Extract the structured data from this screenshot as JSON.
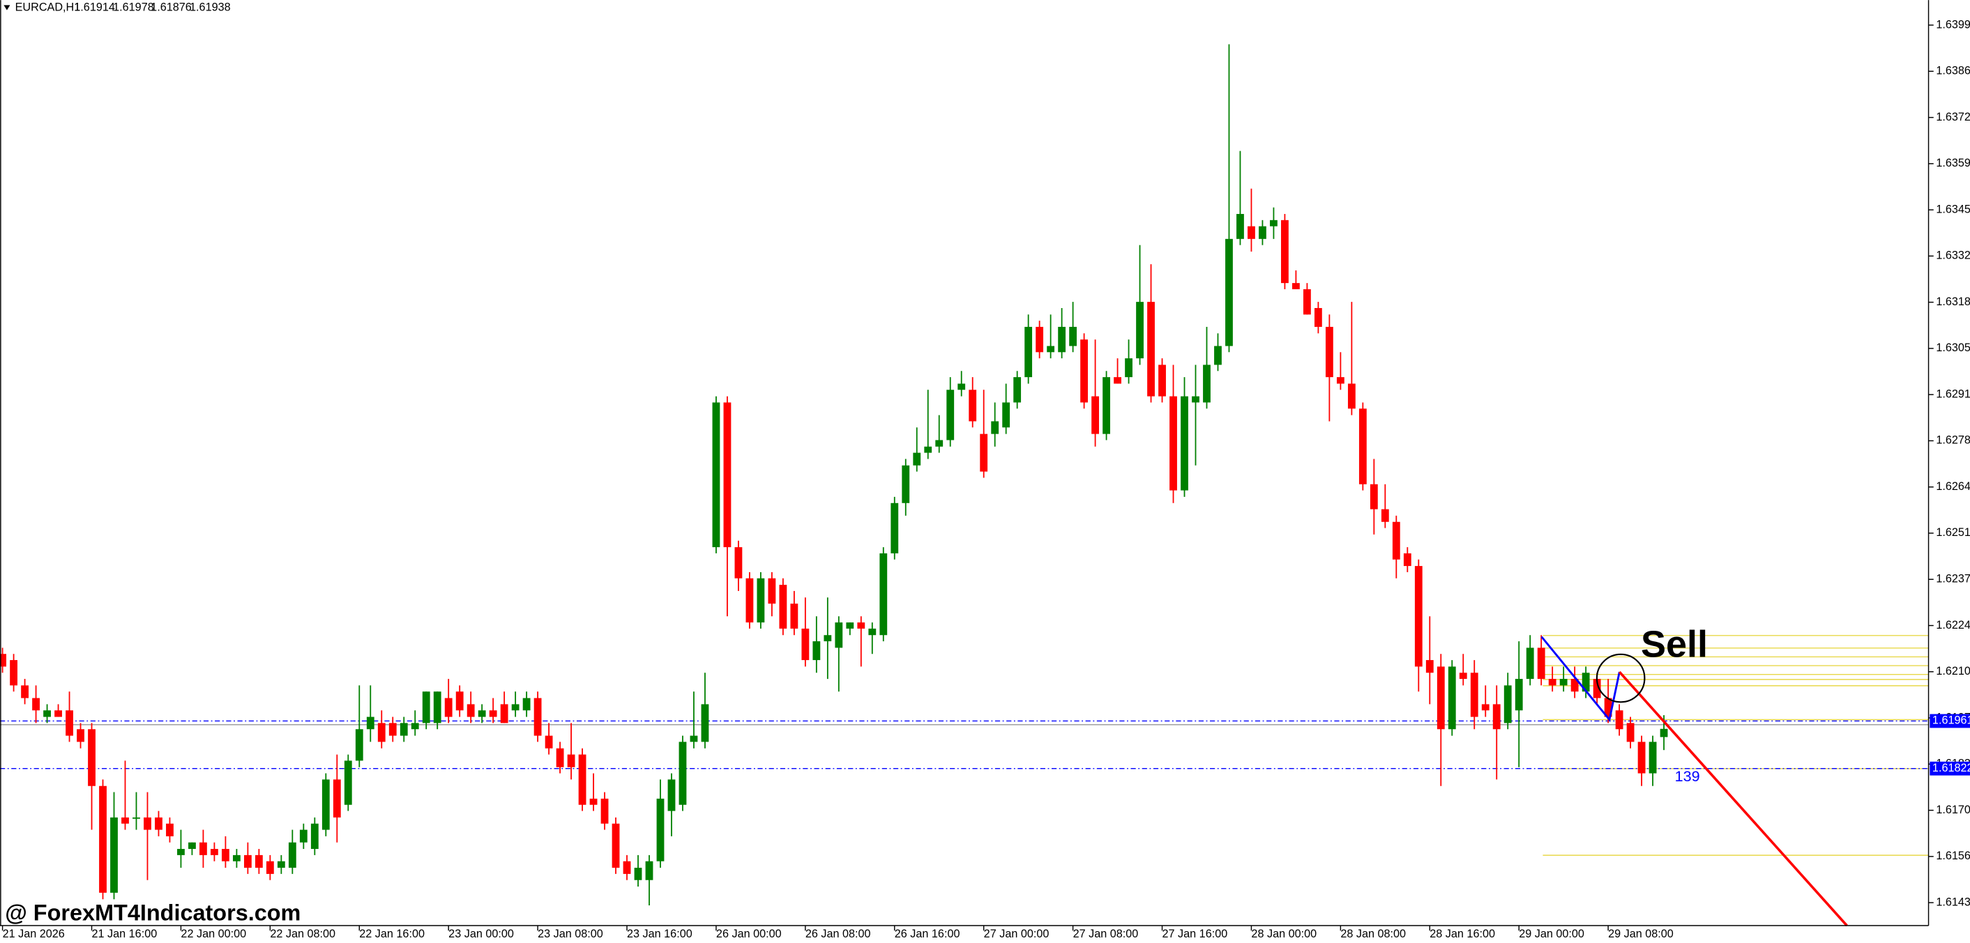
{
  "chart_data": {
    "type": "candlestick",
    "symbol": "EURCAD,H1",
    "watermark": "@ ForexMT4Indicators.com",
    "annotations": [
      "Sell",
      "139"
    ],
    "up_color": "#008000",
    "down_color": "#ff0000",
    "ylim": [
      1.61363,
      1.64068
    ],
    "yticks": [
      1.63995,
      {
        "value": 1.6386,
        "label": "1.63860"
      },
      1.63725,
      {
        "value": 1.6359,
        "label": "1.63590"
      },
      1.63455,
      {
        "value": 1.6332,
        "label": "1.63320"
      },
      1.63185,
      {
        "value": 1.6305,
        "label": "1.63050"
      },
      1.62915,
      {
        "value": 1.6278,
        "label": "1.62780"
      },
      1.62645,
      {
        "value": 1.6251,
        "label": "1.62510"
      },
      1.62375,
      {
        "value": 1.6224,
        "label": "1.62240"
      },
      1.62105,
      {
        "value": 1.6197,
        "label": "1.61970"
      },
      1.61835,
      {
        "value": 1.617,
        "label": "1.61700"
      },
      1.61565,
      {
        "value": 1.6143,
        "label": "1.61430"
      }
    ],
    "hlines": [
      {
        "value": 1.61961,
        "label": "1.61961",
        "color": "#0000ff"
      },
      {
        "value": 1.61822,
        "label": "1.61822",
        "color": "#0000ff"
      }
    ],
    "x": [
      "21 Jan 2026",
      null,
      null,
      null,
      null,
      null,
      null,
      null,
      "21 Jan 16:00",
      null,
      null,
      null,
      null,
      null,
      null,
      null,
      "22 Jan 00:00",
      null,
      null,
      null,
      null,
      null,
      null,
      null,
      "22 Jan 08:00",
      null,
      null,
      null,
      null,
      null,
      null,
      null,
      "22 Jan 16:00",
      null,
      null,
      null,
      null,
      null,
      null,
      null,
      "23 Jan 00:00",
      null,
      null,
      null,
      null,
      null,
      null,
      null,
      "23 Jan 08:00",
      null,
      null,
      null,
      null,
      null,
      null,
      null,
      "23 Jan 16:00",
      null,
      null,
      null,
      null,
      null,
      null,
      null,
      "26 Jan 00:00",
      null,
      null,
      null,
      null,
      null,
      null,
      null,
      "26 Jan 08:00",
      null,
      null,
      null,
      null,
      null,
      null,
      null,
      "26 Jan 16:00",
      null,
      null,
      null,
      null,
      null,
      null,
      null,
      "27 Jan 00:00",
      null,
      null,
      null,
      null,
      null,
      null,
      null,
      "27 Jan 08:00",
      null,
      null,
      null,
      null,
      null,
      null,
      null,
      "27 Jan 16:00",
      null,
      null,
      null,
      null,
      null,
      null,
      null,
      "28 Jan 00:00",
      null,
      null,
      null,
      null,
      null,
      null,
      null,
      "28 Jan 08:00",
      null,
      null,
      null,
      null,
      null,
      null,
      null,
      "28 Jan 16:00",
      null,
      null,
      null,
      null,
      null,
      null,
      null,
      "29 Jan 00:00",
      null,
      null,
      null,
      null,
      null,
      null,
      null,
      "29 Jan 08:00",
      null,
      null,
      null,
      null,
      null
    ],
    "open": [
      1.62157,
      1.62139,
      1.62065,
      1.62028,
      1.61973,
      1.61992,
      1.61992,
      1.61937,
      1.61937,
      1.61771,
      1.61459,
      1.61679,
      1.61679,
      1.61679,
      1.61679,
      1.61661,
      1.61569,
      1.61587,
      1.61606,
      1.61587,
      1.61587,
      1.61551,
      1.61569,
      1.61569,
      1.61551,
      1.61532,
      1.61532,
      1.61606,
      1.61587,
      1.61643,
      1.6179,
      1.61716,
      1.61845,
      1.61937,
      1.61955,
      1.61955,
      1.61918,
      1.61937,
      1.61955,
      1.61955,
      1.62028,
      1.62047,
      1.6201,
      1.61973,
      1.61992,
      1.6201,
      1.61992,
      1.61992,
      1.62028,
      1.61918,
      1.61881,
      1.61863,
      1.61863,
      1.61734,
      1.61734,
      1.61661,
      1.61551,
      1.61496,
      1.61496,
      1.61551,
      1.61698,
      1.61716,
      1.619,
      1.619,
      1.62469,
      1.62892,
      1.62469,
      1.62378,
      1.62249,
      1.62378,
      1.62359,
      1.62304,
      1.62231,
      1.62139,
      1.62194,
      1.62175,
      1.62231,
      1.62249,
      1.62212,
      1.62212,
      1.62451,
      1.62598,
      1.62708,
      1.62745,
      1.62763,
      1.62782,
      1.62929,
      1.62929,
      1.628,
      1.628,
      1.62819,
      1.62892,
      1.62966,
      1.63113,
      1.63039,
      1.63039,
      1.63057,
      1.63076,
      1.6291,
      1.628,
      1.62966,
      1.62966,
      1.63021,
      1.63186,
      1.63002,
      1.6291,
      1.62635,
      1.62892,
      1.62892,
      1.63002,
      1.63057,
      1.6337,
      1.63407,
      1.6337,
      1.63407,
      1.63425,
      1.63241,
      1.63223,
      1.63168,
      1.63113,
      1.62966,
      1.62947,
      1.62874,
      1.62653,
      1.6258,
      1.62543,
      1.62451,
      1.62414,
      1.62139,
      1.6212,
      1.61937,
      1.62102,
      1.62102,
      1.6201,
      1.6201,
      1.61955,
      1.61992,
      1.62084,
      1.62175,
      1.62084,
      1.62065,
      1.62084,
      1.62047,
      1.62084,
      1.62028,
      1.61992,
      1.61955,
      1.619,
      1.61808,
      1.61914
    ],
    "high": [
      1.62175,
      1.62157,
      1.62084,
      1.62065,
      1.6201,
      1.6201,
      1.62047,
      1.61955,
      1.61955,
      1.6179,
      1.61753,
      1.61845,
      1.61753,
      1.61753,
      1.61698,
      1.61679,
      1.61643,
      1.61606,
      1.61643,
      1.61606,
      1.61624,
      1.61587,
      1.61606,
      1.61587,
      1.61569,
      1.61569,
      1.61643,
      1.61661,
      1.61679,
      1.61808,
      1.61863,
      1.61863,
      1.62065,
      1.62065,
      1.61992,
      1.61973,
      1.61973,
      1.61992,
      1.62047,
      1.62047,
      1.62084,
      1.62065,
      1.62047,
      1.6201,
      1.62028,
      1.62047,
      1.62047,
      1.62047,
      1.62047,
      1.61955,
      1.619,
      1.61955,
      1.61881,
      1.61808,
      1.61753,
      1.61679,
      1.61569,
      1.61569,
      1.61569,
      1.6179,
      1.61808,
      1.61918,
      1.62047,
      1.62102,
      1.6291,
      1.6291,
      1.62488,
      1.62396,
      1.62396,
      1.62396,
      1.62378,
      1.62341,
      1.62322,
      1.62267,
      1.62322,
      1.62267,
      1.62249,
      1.62267,
      1.62249,
      1.62469,
      1.62616,
      1.62727,
      1.62819,
      1.62929,
      1.62855,
      1.62966,
      1.62984,
      1.62966,
      1.62929,
      1.62892,
      1.62947,
      1.62984,
      1.63149,
      1.63131,
      1.63149,
      1.63168,
      1.63186,
      1.63094,
      1.63076,
      1.62984,
      1.63021,
      1.63076,
      1.63352,
      1.63296,
      1.63021,
      1.63002,
      1.62966,
      1.63002,
      1.63113,
      1.63094,
      1.63939,
      1.63627,
      1.63517,
      1.63425,
      1.63462,
      1.63443,
      1.63278,
      1.63241,
      1.63186,
      1.63149,
      1.63039,
      1.63186,
      1.62892,
      1.62727,
      1.62653,
      1.62561,
      1.62469,
      1.62433,
      1.62267,
      1.62157,
      1.62139,
      1.62157,
      1.62139,
      1.62065,
      1.62065,
      1.62102,
      1.62194,
      1.62212,
      1.62212,
      1.6212,
      1.6212,
      1.6212,
      1.6212,
      1.62102,
      1.62084,
      1.6201,
      1.61973,
      1.61918,
      1.61918,
      1.61978
    ],
    "low": [
      1.62102,
      1.62047,
      1.6201,
      1.61955,
      1.61955,
      1.61973,
      1.619,
      1.61881,
      1.61643,
      1.6144,
      1.6144,
      1.61643,
      1.61643,
      1.61496,
      1.61624,
      1.61606,
      1.61532,
      1.61569,
      1.61532,
      1.61551,
      1.61532,
      1.61532,
      1.61514,
      1.61514,
      1.61496,
      1.61514,
      1.61514,
      1.61587,
      1.61569,
      1.61624,
      1.61606,
      1.61698,
      1.61826,
      1.619,
      1.61881,
      1.619,
      1.619,
      1.61918,
      1.61937,
      1.61937,
      1.61955,
      1.61973,
      1.61955,
      1.61955,
      1.61955,
      1.61955,
      1.61973,
      1.61973,
      1.619,
      1.61863,
      1.61808,
      1.6179,
      1.61698,
      1.61698,
      1.61643,
      1.61514,
      1.61496,
      1.61477,
      1.61422,
      1.61532,
      1.61624,
      1.61698,
      1.61881,
      1.61881,
      1.62451,
      1.62267,
      1.62341,
      1.62231,
      1.62231,
      1.62267,
      1.62212,
      1.62212,
      1.6212,
      1.62102,
      1.62084,
      1.62047,
      1.62212,
      1.6212,
      1.62157,
      1.62194,
      1.62433,
      1.62561,
      1.6269,
      1.62727,
      1.62745,
      1.62763,
      1.6291,
      1.62819,
      1.62672,
      1.62763,
      1.628,
      1.62874,
      1.62947,
      1.63021,
      1.63021,
      1.63021,
      1.63039,
      1.62874,
      1.62763,
      1.62782,
      1.62947,
      1.62947,
      1.63002,
      1.62892,
      1.62892,
      1.62598,
      1.62616,
      1.62708,
      1.62874,
      1.62984,
      1.63039,
      1.63352,
      1.63333,
      1.63352,
      1.6337,
      1.63223,
      1.63223,
      1.63149,
      1.63094,
      1.62837,
      1.62929,
      1.62855,
      1.62635,
      1.62506,
      1.62525,
      1.62378,
      1.62396,
      1.62047,
      1.6201,
      1.61771,
      1.61918,
      1.62065,
      1.61937,
      1.61973,
      1.6179,
      1.61937,
      1.61826,
      1.62065,
      1.62065,
      1.62047,
      1.62047,
      1.62028,
      1.62028,
      1.6201,
      1.61955,
      1.61918,
      1.61881,
      1.61771,
      1.61771,
      1.61876
    ],
    "close": [
      1.6212,
      1.62065,
      1.62028,
      1.61992,
      1.61992,
      1.61973,
      1.61918,
      1.619,
      1.61771,
      1.61459,
      1.61679,
      1.61661,
      1.61679,
      1.61643,
      1.61643,
      1.61624,
      1.61587,
      1.61606,
      1.61569,
      1.61569,
      1.61551,
      1.61569,
      1.61532,
      1.61532,
      1.61514,
      1.61551,
      1.61606,
      1.61643,
      1.61661,
      1.6179,
      1.61679,
      1.61845,
      1.61937,
      1.61973,
      1.619,
      1.61918,
      1.61955,
      1.61955,
      1.62047,
      1.62047,
      1.61973,
      1.61992,
      1.61973,
      1.61992,
      1.61973,
      1.61955,
      1.6201,
      1.62028,
      1.61918,
      1.61881,
      1.61826,
      1.61826,
      1.61716,
      1.61716,
      1.61661,
      1.61532,
      1.61514,
      1.61532,
      1.61551,
      1.61734,
      1.6179,
      1.619,
      1.61918,
      1.6201,
      1.62892,
      1.62469,
      1.62378,
      1.62249,
      1.62378,
      1.62304,
      1.62231,
      1.62231,
      1.62139,
      1.62194,
      1.62212,
      1.62249,
      1.62249,
      1.62231,
      1.62231,
      1.62451,
      1.62598,
      1.62708,
      1.62745,
      1.62763,
      1.62782,
      1.62929,
      1.62947,
      1.62837,
      1.6269,
      1.62837,
      1.62892,
      1.62966,
      1.63113,
      1.63039,
      1.63057,
      1.63113,
      1.63113,
      1.62892,
      1.628,
      1.62966,
      1.62947,
      1.63021,
      1.63186,
      1.6291,
      1.6291,
      1.62635,
      1.6291,
      1.6291,
      1.63002,
      1.63057,
      1.6337,
      1.63443,
      1.6337,
      1.63407,
      1.63425,
      1.63241,
      1.63223,
      1.63149,
      1.63113,
      1.62966,
      1.62947,
      1.62874,
      1.62653,
      1.6258,
      1.62543,
      1.62433,
      1.62414,
      1.6212,
      1.62102,
      1.61937,
      1.6212,
      1.62084,
      1.61973,
      1.61992,
      1.61937,
      1.62065,
      1.62084,
      1.62175,
      1.62084,
      1.62065,
      1.62084,
      1.62047,
      1.62102,
      1.62028,
      1.61973,
      1.61937,
      1.619,
      1.61808,
      1.619,
      1.61938
    ]
  }
}
